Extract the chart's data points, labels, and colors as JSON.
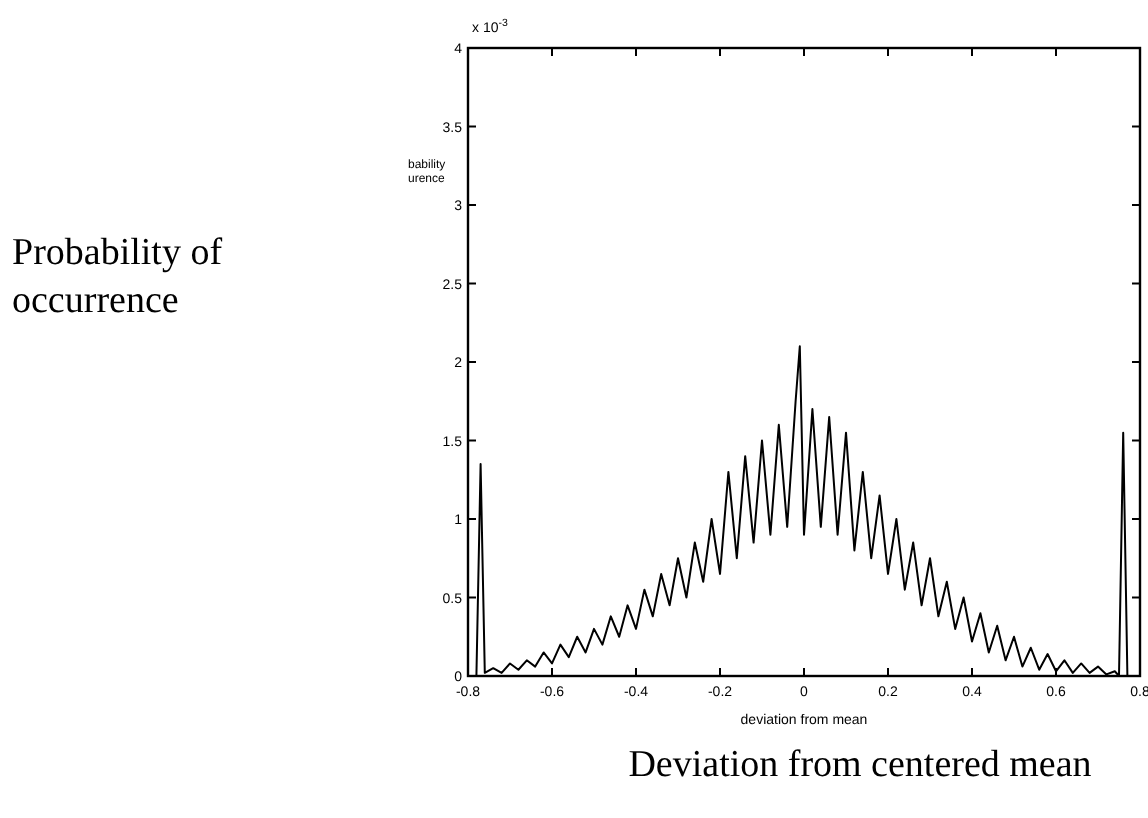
{
  "chart_data": {
    "type": "line",
    "xlabel": "deviation from mean",
    "ylabel": "bability urence",
    "annotations": [
      "x 10$^{-3}$",
      "Deviation from centered mean",
      "Probability of occurrence"
    ],
    "x": [
      -0.8,
      -0.78,
      -0.77,
      -0.76,
      -0.74,
      -0.72,
      -0.7,
      -0.68,
      -0.66,
      -0.64,
      -0.62,
      -0.6,
      -0.58,
      -0.56,
      -0.54,
      -0.52,
      -0.5,
      -0.48,
      -0.46,
      -0.44,
      -0.42,
      -0.4,
      -0.38,
      -0.36,
      -0.34,
      -0.32,
      -0.3,
      -0.28,
      -0.26,
      -0.24,
      -0.22,
      -0.2,
      -0.18,
      -0.16,
      -0.14,
      -0.12,
      -0.1,
      -0.08,
      -0.06,
      -0.04,
      -0.02,
      -0.01,
      0,
      0.02,
      0.04,
      0.06,
      0.08,
      0.1,
      0.12,
      0.14,
      0.16,
      0.18,
      0.2,
      0.22,
      0.24,
      0.26,
      0.28,
      0.3,
      0.32,
      0.34,
      0.36,
      0.38,
      0.4,
      0.42,
      0.44,
      0.46,
      0.48,
      0.5,
      0.52,
      0.54,
      0.56,
      0.58,
      0.6,
      0.62,
      0.64,
      0.66,
      0.68,
      0.7,
      0.72,
      0.74,
      0.75,
      0.76,
      0.77,
      0.8
    ],
    "series": [
      {
        "color": "#000000",
        "values": [
          0,
          0,
          1.35,
          0.02,
          0.05,
          0.02,
          0.08,
          0.04,
          0.1,
          0.06,
          0.15,
          0.08,
          0.2,
          0.12,
          0.25,
          0.15,
          0.3,
          0.2,
          0.38,
          0.25,
          0.45,
          0.3,
          0.55,
          0.38,
          0.65,
          0.45,
          0.75,
          0.5,
          0.85,
          0.6,
          1.0,
          0.65,
          1.3,
          0.75,
          1.4,
          0.85,
          1.5,
          0.9,
          1.6,
          0.95,
          1.75,
          2.1,
          0.9,
          1.7,
          0.95,
          1.65,
          0.9,
          1.55,
          0.8,
          1.3,
          0.75,
          1.15,
          0.65,
          1.0,
          0.55,
          0.85,
          0.45,
          0.75,
          0.38,
          0.6,
          0.3,
          0.5,
          0.22,
          0.4,
          0.15,
          0.32,
          0.1,
          0.25,
          0.06,
          0.18,
          0.04,
          0.14,
          0.03,
          0.1,
          0.02,
          0.08,
          0.02,
          0.06,
          0.01,
          0.03,
          0,
          1.55,
          0,
          0
        ]
      }
    ],
    "xlim": [
      -0.8,
      0.8
    ],
    "xticks": [
      -0.8,
      -0.6,
      -0.4,
      -0.2,
      0,
      0.2,
      0.4,
      0.6,
      0.8
    ],
    "ylim": [
      0,
      4
    ],
    "yticks": [
      0,
      0.5,
      1,
      1.5,
      2,
      2.5,
      3,
      3.5,
      4
    ],
    "grid": false,
    "marker": "none",
    "line_style": "solid"
  }
}
